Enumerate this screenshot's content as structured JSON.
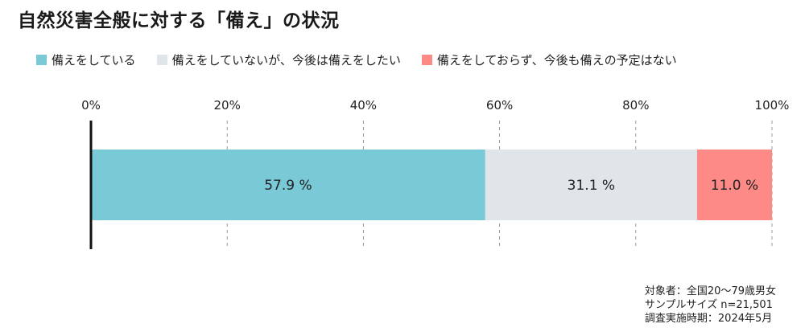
{
  "title": "自然災害全般に対する「備え」の状況",
  "colors": {
    "prepared": "#79c9d6",
    "not_prepared_want": "#e0e5e9",
    "not_prepared_no_plan": "#fe8a88",
    "axis": "#111111",
    "grid": "#999999"
  },
  "chart_data": {
    "type": "bar",
    "orientation": "horizontal",
    "stacked": true,
    "categories": [
      ""
    ],
    "series": [
      {
        "name": "備えをしている",
        "values": [
          57.9
        ],
        "label": "57.9 %"
      },
      {
        "name": "備えをしていないが、今後は備えをしたい",
        "values": [
          31.1
        ],
        "label": "31.1 %"
      },
      {
        "name": "備えをしておらず、今後も備えの予定はない",
        "values": [
          11.0
        ],
        "label": "11.0 %"
      }
    ],
    "xlim": [
      0,
      100
    ],
    "x_ticks": [
      {
        "value": 0,
        "label": "0%"
      },
      {
        "value": 20,
        "label": "20%"
      },
      {
        "value": 40,
        "label": "40%"
      },
      {
        "value": 60,
        "label": "60%"
      },
      {
        "value": 80,
        "label": "80%"
      },
      {
        "value": 100,
        "label": "100%"
      }
    ],
    "grid": true,
    "legend_position": "top"
  },
  "notes": [
    "対象者：全国20～79歳男女",
    "サンプルサイズ n=21,501",
    "調査実施時期：2024年5月"
  ]
}
